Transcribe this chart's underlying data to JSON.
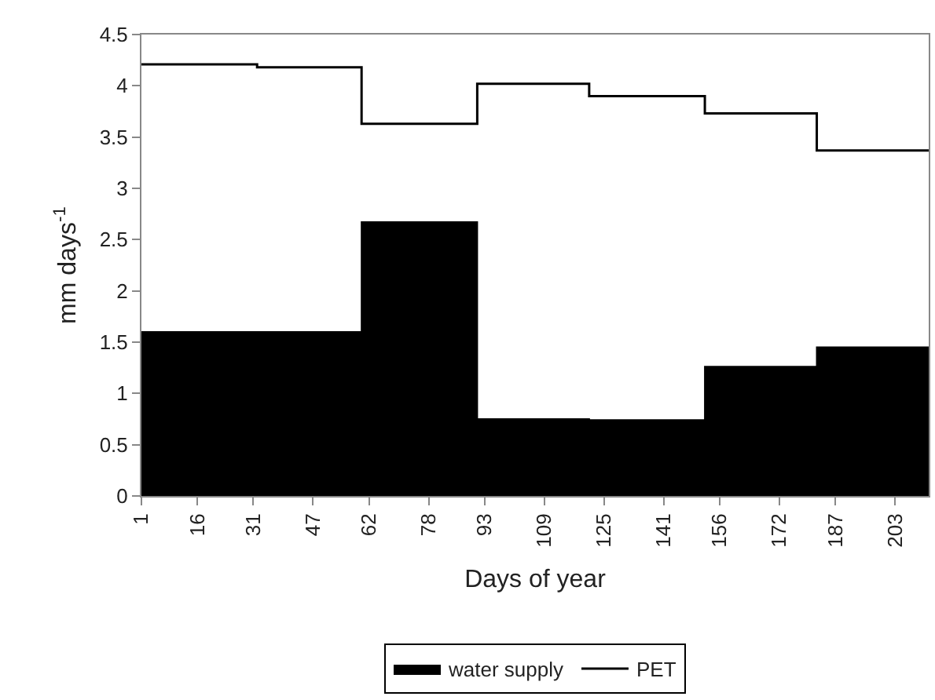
{
  "chart_data": {
    "type": "step",
    "xlabel": "Days of year",
    "ylabel": "mm days$^{-1}$",
    "x": [
      1,
      32,
      60,
      91,
      121,
      152,
      182,
      212
    ],
    "series": [
      {
        "name": "water supply",
        "type": "area",
        "color": "#000000",
        "x": [
          1,
          60,
          60,
          91,
          91,
          121,
          121,
          152,
          152,
          182,
          182,
          212
        ],
        "values": [
          1.6,
          1.6,
          2.67,
          2.67,
          0.75,
          0.75,
          0.74,
          0.74,
          1.26,
          1.26,
          1.45,
          1.45
        ]
      },
      {
        "name": "PET",
        "color": "#000000",
        "values": [
          4.21,
          4.18,
          3.63,
          4.02,
          3.9,
          3.73,
          3.37,
          3.37
        ]
      }
    ],
    "xlim": [
      1,
      212
    ],
    "xticks": [
      1,
      16,
      31,
      47,
      62,
      78,
      93,
      109,
      125,
      141,
      156,
      172,
      187,
      203
    ],
    "ylim": [
      0,
      4.5
    ],
    "yticks": [
      0,
      0.5,
      1,
      1.5,
      2,
      2.5,
      3,
      3.5,
      4,
      4.5
    ],
    "grid": false,
    "legend": "bottom",
    "marker": "none",
    "line_style": "solid"
  }
}
